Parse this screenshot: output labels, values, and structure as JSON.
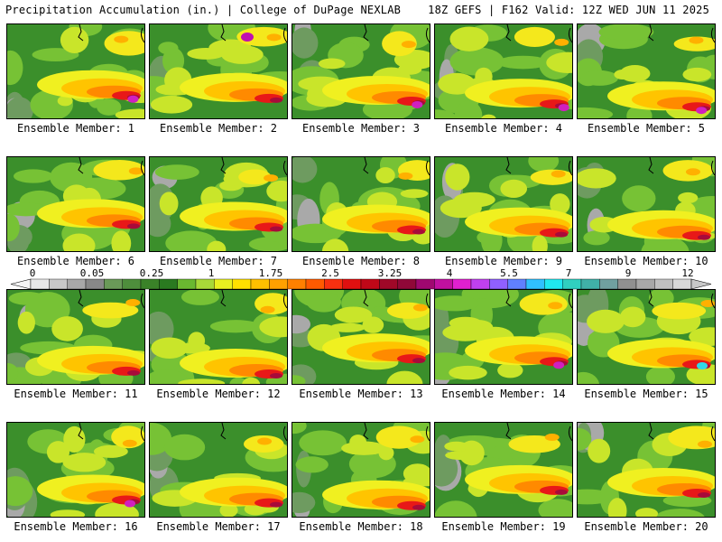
{
  "header": {
    "left": "Precipitation Accumulation (in.) | College of DuPage NEXLAB",
    "right": "18Z GEFS | F162 Valid: 12Z WED JUN 11 2025"
  },
  "members": [
    {
      "label": "Ensemble Member: 1"
    },
    {
      "label": "Ensemble Member: 2"
    },
    {
      "label": "Ensemble Member: 3"
    },
    {
      "label": "Ensemble Member: 4"
    },
    {
      "label": "Ensemble Member: 5"
    },
    {
      "label": "Ensemble Member: 6"
    },
    {
      "label": "Ensemble Member: 7"
    },
    {
      "label": "Ensemble Member: 8"
    },
    {
      "label": "Ensemble Member: 9"
    },
    {
      "label": "Ensemble Member: 10"
    },
    {
      "label": "Ensemble Member: 11"
    },
    {
      "label": "Ensemble Member: 12"
    },
    {
      "label": "Ensemble Member: 13"
    },
    {
      "label": "Ensemble Member: 14"
    },
    {
      "label": "Ensemble Member: 15"
    },
    {
      "label": "Ensemble Member: 16"
    },
    {
      "label": "Ensemble Member: 17"
    },
    {
      "label": "Ensemble Member: 18"
    },
    {
      "label": "Ensemble Member: 19"
    },
    {
      "label": "Ensemble Member: 20"
    }
  ],
  "colorbar": {
    "ticks": [
      "0",
      "0.05",
      "0.25",
      "1",
      "1.75",
      "2.5",
      "3.25",
      "4",
      "5.5",
      "7",
      "9",
      "12"
    ],
    "colors": [
      "#e8e8e8",
      "#c8c8c8",
      "#a8a8a8",
      "#888888",
      "#6a9a58",
      "#4e8e3c",
      "#3a8228",
      "#2a7a20",
      "#6ab830",
      "#a8d838",
      "#e8f020",
      "#ffe000",
      "#ffc000",
      "#ffa000",
      "#ff8000",
      "#ff5a00",
      "#f83010",
      "#e01010",
      "#c00818",
      "#a00828",
      "#900838",
      "#a00870",
      "#c010a0",
      "#e020d0",
      "#c040f0",
      "#9060ff",
      "#6080ff",
      "#30c0ff",
      "#20e8f0",
      "#30d0c0",
      "#40b0a8",
      "#70a0a0",
      "#909090",
      "#a8a8a8",
      "#c0c0c0",
      "#d8d8d8"
    ]
  }
}
